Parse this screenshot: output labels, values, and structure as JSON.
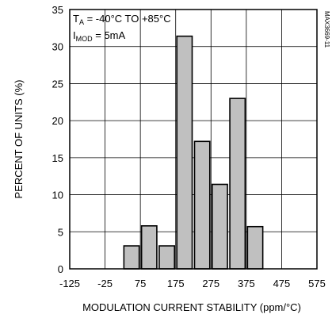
{
  "chart_data": {
    "type": "bar",
    "xlabel": "MODULATION CURRENT STABILITY (ppm/°C)",
    "ylabel": "PERCENT OF UNITS (%)",
    "xlim": [
      -125,
      575
    ],
    "ylim": [
      0,
      35
    ],
    "xticks": [
      -125,
      -25,
      75,
      175,
      275,
      375,
      475,
      575
    ],
    "yticks": [
      0,
      5,
      10,
      15,
      20,
      25,
      30,
      35
    ],
    "bin_width": 50,
    "bins": [
      {
        "start": 25,
        "end": 75,
        "value": 3.1
      },
      {
        "start": 75,
        "end": 125,
        "value": 5.8
      },
      {
        "start": 125,
        "end": 175,
        "value": 3.1
      },
      {
        "start": 175,
        "end": 225,
        "value": 31.4
      },
      {
        "start": 225,
        "end": 275,
        "value": 17.2
      },
      {
        "start": 275,
        "end": 325,
        "value": 11.4
      },
      {
        "start": 325,
        "end": 375,
        "value": 23.0
      },
      {
        "start": 375,
        "end": 425,
        "value": 5.7
      }
    ],
    "grid": true,
    "bar_color": "#c0c0c0",
    "annotations": {
      "temp_line": {
        "prefix": "T",
        "sub": "A",
        "suffix": " = -40°C TO +85°C"
      },
      "imod_line": {
        "prefix": "I",
        "sub": "MOD",
        "suffix": " = 5mA"
      }
    },
    "side_label": "MAX3669-11"
  }
}
